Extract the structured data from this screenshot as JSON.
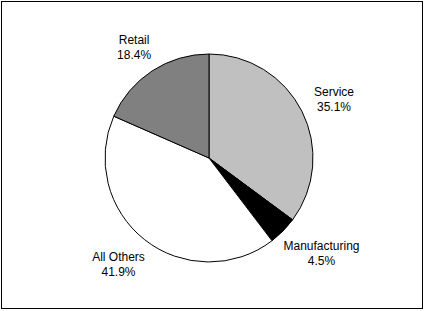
{
  "chart_data": {
    "type": "pie",
    "categories": [
      "Service",
      "Manufacturing",
      "All Others",
      "Retail"
    ],
    "values": [
      35.1,
      4.5,
      41.9,
      18.4
    ],
    "value_labels": [
      "35.1%",
      "4.5%",
      "41.9%",
      "18.4%"
    ],
    "colors": [
      "#c0c0c0",
      "#000000",
      "#ffffff",
      "#808080"
    ],
    "data_labels": true
  }
}
